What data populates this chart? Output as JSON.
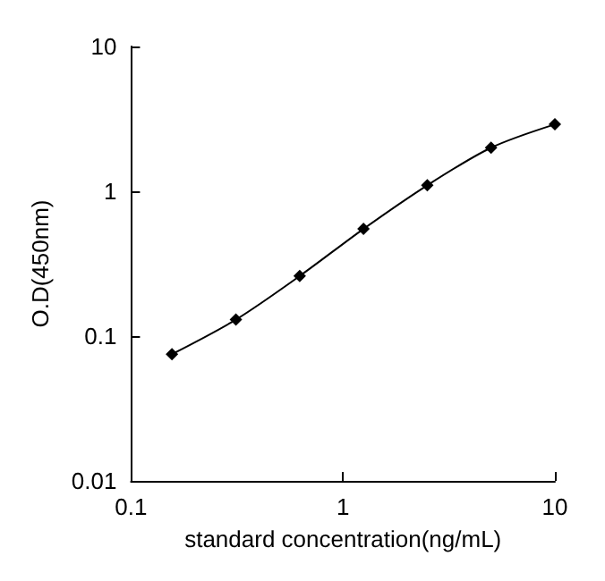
{
  "chart_data": {
    "type": "line",
    "xlabel": "standard concentration(ng/mL)",
    "ylabel": "O.D(450nm)",
    "x": [
      0.156,
      0.3125,
      0.625,
      1.25,
      2.5,
      5,
      10
    ],
    "series": [
      {
        "color": "#000000",
        "values": [
          0.075,
          0.13,
          0.26,
          0.55,
          1.1,
          2.0,
          2.9
        ]
      }
    ],
    "log": "xy",
    "xlim": [
      0.1,
      10
    ],
    "xticks": [
      0.1,
      1,
      10
    ],
    "ylim": [
      0.01,
      10
    ],
    "yticks": [
      0.01,
      0.1,
      1,
      10
    ],
    "marker": "diamond",
    "line_style": "solid"
  }
}
